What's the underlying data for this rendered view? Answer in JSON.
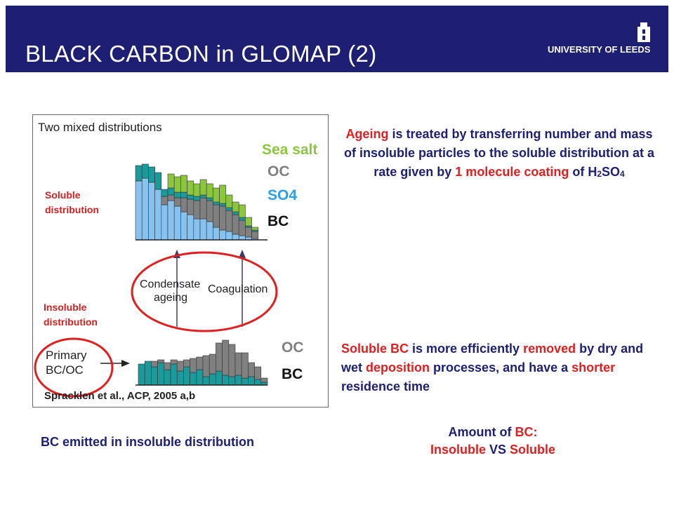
{
  "header": {
    "title": "BLACK CARBON in GLOMAP (2)",
    "logo_text": "UNIVERSITY OF LEEDS",
    "bg_color": "#1d1f72"
  },
  "figure": {
    "title": "Two mixed distributions",
    "legend_upper": [
      "Sea salt",
      "OC",
      "SO4",
      "BC"
    ],
    "legend_lower": [
      "OC",
      "BC"
    ],
    "process_left_line1": "Condensate",
    "process_left_line2": "ageing",
    "process_right": "Coagulation",
    "primary_line1": "Primary",
    "primary_line2": "BC/OC",
    "credit": "Spracklen et al., ACP, 2005 a,b",
    "colors": {
      "sea_salt": "#8cc63f",
      "oc": "#808080",
      "so4": "#87c3f0",
      "bc": "#1a9a9a",
      "circle": "#e02020"
    }
  },
  "labels": {
    "soluble_line1": "Soluble",
    "soluble_line2": "distribution",
    "insoluble_line1": "Insoluble",
    "insoluble_line2": "distribution"
  },
  "para1": {
    "t1": "Ageing",
    "t2": " is treated by transferring number and mass of insoluble particles to the soluble distribution at a rate given by ",
    "t3": "1 molecule coating",
    "t4": " of H",
    "t5": "2",
    "t6": "SO",
    "t7": "4"
  },
  "para2": {
    "t1": "Soluble BC",
    "t2": " is more efficiently ",
    "t3": "removed",
    "t4": " by dry and wet ",
    "t5": "deposition",
    "t6": " processes, and have a ",
    "t7": "shorter",
    "t8": " residence time"
  },
  "caption_left": "BC emitted in insoluble distribution",
  "caption_right": {
    "line1a": "Amount of ",
    "line1b": "BC:",
    "line2a": "Insoluble",
    "line2b": " VS ",
    "line2c": "Soluble"
  }
}
